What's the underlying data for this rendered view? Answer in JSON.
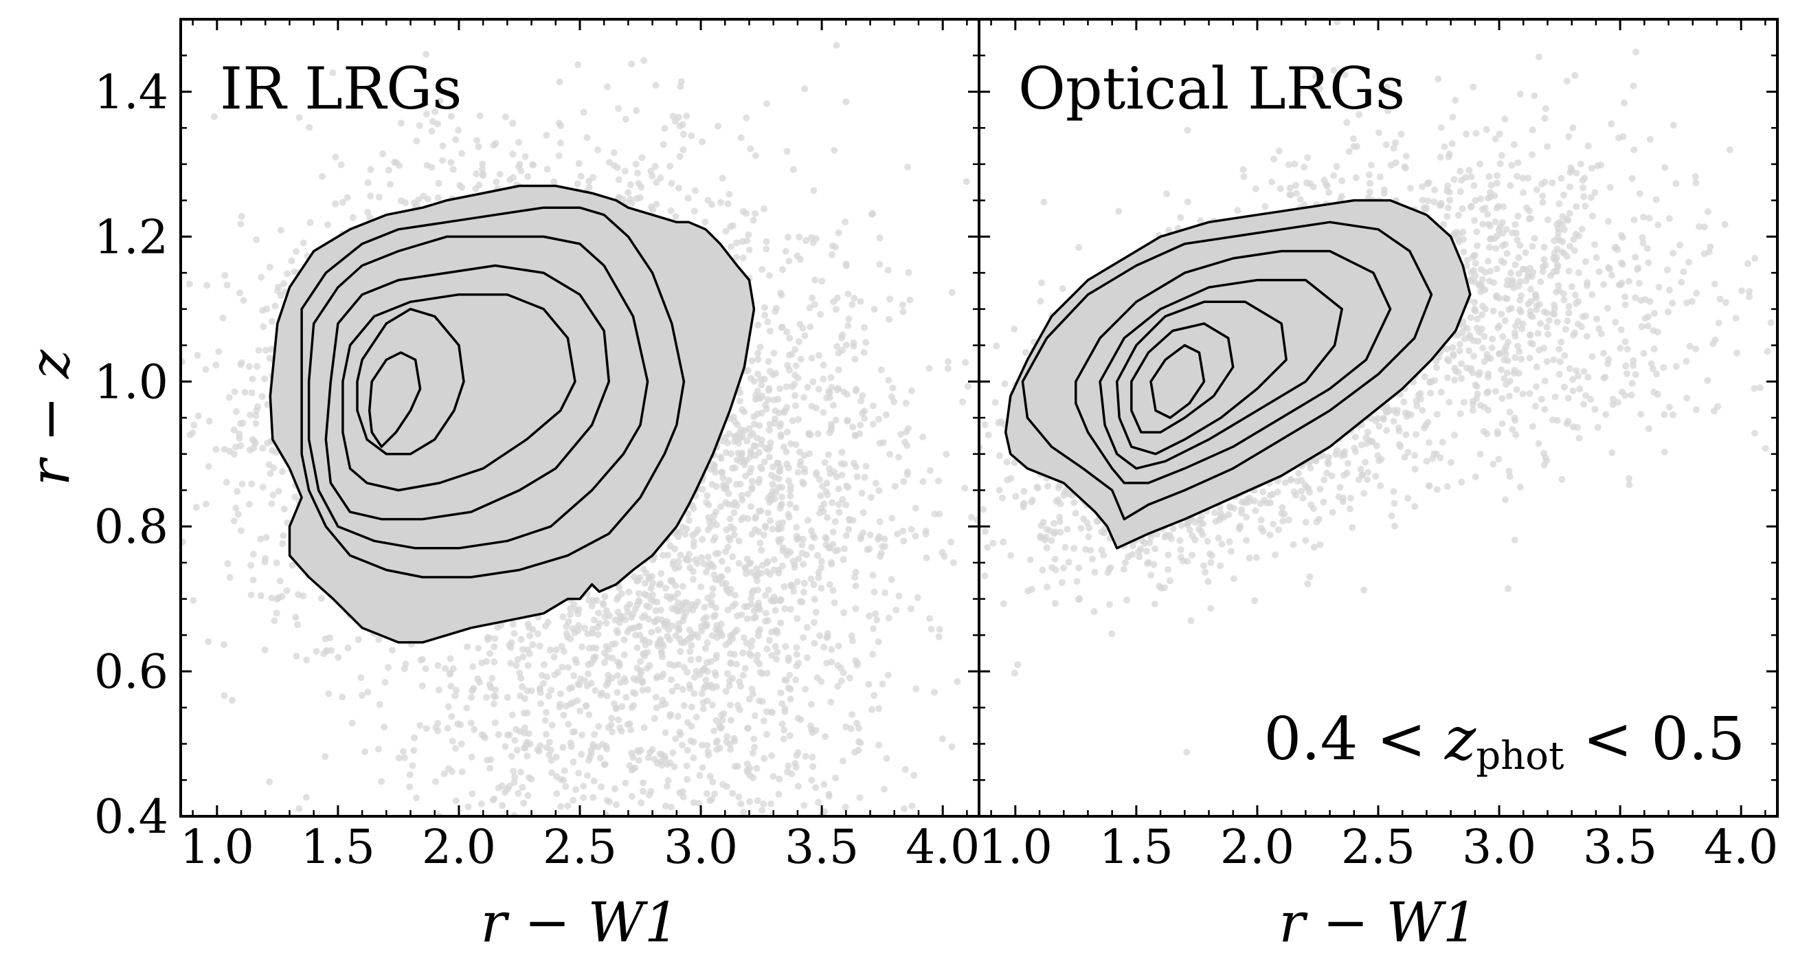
{
  "chart_data": [
    {
      "type": "scatter",
      "title": "IR LRGs",
      "annotation": "",
      "xlabel": "r − W1",
      "ylabel": "r − z",
      "xlim": [
        0.85,
        4.15
      ],
      "ylim": [
        0.4,
        1.5
      ],
      "xticks": [
        "1.0",
        "1.5",
        "2.0",
        "2.5",
        "3.0",
        "3.5",
        "4.0"
      ],
      "yticks": [
        "0.4",
        "0.6",
        "0.8",
        "1.0",
        "1.2",
        "1.4"
      ],
      "scatter_color": "#d6d6d6",
      "contour_fill": "#d3d3d3",
      "contour_color": "#000000",
      "contours": [
        {
          "level": 1,
          "x": [
            1.25,
            1.3,
            1.4,
            1.55,
            1.7,
            1.85,
            1.95,
            2.1,
            2.25,
            2.4,
            2.55,
            2.65,
            2.7,
            2.8,
            2.9,
            2.95,
            3.02,
            3.08,
            3.15,
            3.2,
            3.22,
            3.18,
            3.12,
            3.05,
            2.98,
            2.95,
            2.9,
            2.8,
            2.72,
            2.65,
            2.58,
            2.55,
            2.5,
            2.45,
            2.35,
            2.2,
            2.05,
            1.95,
            1.85,
            1.75,
            1.6,
            1.48,
            1.38,
            1.3,
            1.3,
            1.35,
            1.3,
            1.23,
            1.22,
            1.25
          ],
          "y": [
            1.08,
            1.13,
            1.18,
            1.21,
            1.23,
            1.24,
            1.25,
            1.26,
            1.27,
            1.27,
            1.26,
            1.25,
            1.24,
            1.23,
            1.22,
            1.22,
            1.21,
            1.19,
            1.16,
            1.14,
            1.1,
            1.02,
            0.96,
            0.9,
            0.85,
            0.83,
            0.8,
            0.76,
            0.74,
            0.72,
            0.71,
            0.72,
            0.7,
            0.7,
            0.68,
            0.67,
            0.66,
            0.65,
            0.64,
            0.64,
            0.66,
            0.7,
            0.73,
            0.76,
            0.8,
            0.84,
            0.88,
            0.92,
            0.98,
            1.08
          ]
        },
        {
          "level": 2,
          "x": [
            1.35,
            1.45,
            1.6,
            1.75,
            1.95,
            2.15,
            2.35,
            2.5,
            2.6,
            2.7,
            2.8,
            2.88,
            2.93,
            2.9,
            2.85,
            2.75,
            2.62,
            2.45,
            2.25,
            2.05,
            1.85,
            1.7,
            1.55,
            1.45,
            1.38,
            1.35,
            1.35,
            1.35
          ],
          "y": [
            1.1,
            1.15,
            1.19,
            1.21,
            1.22,
            1.23,
            1.24,
            1.24,
            1.23,
            1.2,
            1.15,
            1.08,
            1.0,
            0.94,
            0.9,
            0.84,
            0.79,
            0.76,
            0.74,
            0.73,
            0.73,
            0.74,
            0.76,
            0.8,
            0.85,
            0.9,
            1.0,
            1.1
          ]
        },
        {
          "level": 3,
          "x": [
            1.4,
            1.5,
            1.6,
            1.75,
            1.95,
            2.15,
            2.35,
            2.5,
            2.6,
            2.72,
            2.78,
            2.75,
            2.68,
            2.55,
            2.38,
            2.2,
            2.0,
            1.82,
            1.65,
            1.5,
            1.42,
            1.38,
            1.38,
            1.4
          ],
          "y": [
            1.08,
            1.13,
            1.16,
            1.18,
            1.2,
            1.2,
            1.2,
            1.19,
            1.16,
            1.09,
            1.0,
            0.94,
            0.9,
            0.85,
            0.8,
            0.78,
            0.77,
            0.77,
            0.78,
            0.8,
            0.85,
            0.92,
            1.0,
            1.08
          ]
        },
        {
          "level": 4,
          "x": [
            1.5,
            1.6,
            1.75,
            1.95,
            2.15,
            2.35,
            2.5,
            2.6,
            2.62,
            2.55,
            2.4,
            2.25,
            2.05,
            1.85,
            1.68,
            1.55,
            1.47,
            1.45,
            1.47,
            1.5
          ],
          "y": [
            1.08,
            1.12,
            1.14,
            1.15,
            1.16,
            1.15,
            1.12,
            1.07,
            1.0,
            0.94,
            0.88,
            0.85,
            0.82,
            0.81,
            0.81,
            0.82,
            0.86,
            0.92,
            1.0,
            1.08
          ]
        },
        {
          "level": 5,
          "x": [
            1.55,
            1.65,
            1.8,
            2.0,
            2.2,
            2.35,
            2.45,
            2.48,
            2.42,
            2.28,
            2.1,
            1.92,
            1.75,
            1.62,
            1.55,
            1.52,
            1.52,
            1.55
          ],
          "y": [
            1.05,
            1.09,
            1.11,
            1.12,
            1.12,
            1.1,
            1.06,
            1.0,
            0.96,
            0.92,
            0.88,
            0.86,
            0.85,
            0.86,
            0.88,
            0.93,
            1.0,
            1.05
          ]
        },
        {
          "level": 6,
          "x": [
            1.6,
            1.7,
            1.8,
            1.9,
            2.0,
            2.02,
            1.98,
            1.9,
            1.8,
            1.7,
            1.62,
            1.58,
            1.58,
            1.6
          ],
          "y": [
            1.03,
            1.08,
            1.1,
            1.09,
            1.05,
            1.0,
            0.96,
            0.92,
            0.9,
            0.9,
            0.92,
            0.96,
            1.0,
            1.03
          ]
        },
        {
          "level": 7,
          "x": [
            1.64,
            1.7,
            1.76,
            1.82,
            1.84,
            1.8,
            1.74,
            1.68,
            1.64,
            1.63,
            1.64
          ],
          "y": [
            1.0,
            1.03,
            1.04,
            1.03,
            0.99,
            0.96,
            0.93,
            0.91,
            0.93,
            0.96,
            1.0
          ]
        }
      ]
    },
    {
      "type": "scatter",
      "title": "Optical LRGs",
      "annotation_parts": [
        "0.4 < ",
        "z",
        "phot",
        " < 0.5"
      ],
      "xlabel": "r − W1",
      "ylabel": "",
      "xlim": [
        0.85,
        4.15
      ],
      "ylim": [
        0.4,
        1.5
      ],
      "xticks": [
        "1.0",
        "1.5",
        "2.0",
        "2.5",
        "3.0",
        "3.5",
        "4.0"
      ],
      "yticks": [],
      "scatter_color": "#d6d6d6",
      "contour_fill": "#d3d3d3",
      "contour_color": "#000000",
      "contours": [
        {
          "level": 1,
          "x": [
            0.98,
            1.05,
            1.15,
            1.3,
            1.45,
            1.6,
            1.8,
            2.0,
            2.2,
            2.4,
            2.55,
            2.7,
            2.8,
            2.85,
            2.88,
            2.82,
            2.72,
            2.6,
            2.45,
            2.3,
            2.1,
            1.9,
            1.7,
            1.55,
            1.42,
            1.38,
            1.33,
            1.2,
            1.05,
            0.98,
            0.96,
            0.98
          ],
          "y": [
            0.98,
            1.03,
            1.09,
            1.14,
            1.17,
            1.2,
            1.22,
            1.23,
            1.24,
            1.25,
            1.25,
            1.23,
            1.2,
            1.16,
            1.12,
            1.07,
            1.03,
            0.99,
            0.95,
            0.91,
            0.87,
            0.84,
            0.81,
            0.79,
            0.77,
            0.8,
            0.82,
            0.86,
            0.88,
            0.9,
            0.93,
            0.98
          ]
        },
        {
          "level": 2,
          "x": [
            1.03,
            1.13,
            1.3,
            1.5,
            1.7,
            1.9,
            2.1,
            2.3,
            2.5,
            2.63,
            2.72,
            2.65,
            2.5,
            2.3,
            2.1,
            1.9,
            1.7,
            1.55,
            1.45,
            1.4,
            1.28,
            1.15,
            1.05,
            1.03
          ],
          "y": [
            1.0,
            1.06,
            1.12,
            1.16,
            1.19,
            1.2,
            1.21,
            1.22,
            1.21,
            1.18,
            1.12,
            1.06,
            1.01,
            0.96,
            0.92,
            0.88,
            0.85,
            0.83,
            0.81,
            0.85,
            0.88,
            0.91,
            0.95,
            1.0
          ]
        },
        {
          "level": 3,
          "x": [
            1.25,
            1.35,
            1.5,
            1.7,
            1.9,
            2.1,
            2.3,
            2.48,
            2.55,
            2.45,
            2.3,
            2.1,
            1.9,
            1.7,
            1.55,
            1.45,
            1.4,
            1.3,
            1.25,
            1.25
          ],
          "y": [
            1.0,
            1.06,
            1.11,
            1.15,
            1.17,
            1.18,
            1.18,
            1.15,
            1.1,
            1.03,
            0.99,
            0.95,
            0.91,
            0.88,
            0.86,
            0.86,
            0.88,
            0.93,
            0.97,
            1.0
          ]
        },
        {
          "level": 4,
          "x": [
            1.35,
            1.45,
            1.6,
            1.8,
            2.0,
            2.2,
            2.35,
            2.32,
            2.2,
            2.0,
            1.8,
            1.62,
            1.5,
            1.42,
            1.37,
            1.35
          ],
          "y": [
            1.0,
            1.06,
            1.1,
            1.13,
            1.14,
            1.14,
            1.1,
            1.05,
            1.0,
            0.96,
            0.92,
            0.89,
            0.88,
            0.9,
            0.94,
            1.0
          ]
        },
        {
          "level": 5,
          "x": [
            1.42,
            1.5,
            1.62,
            1.78,
            1.95,
            2.1,
            2.12,
            2.0,
            1.85,
            1.7,
            1.58,
            1.48,
            1.43,
            1.42
          ],
          "y": [
            1.0,
            1.05,
            1.09,
            1.11,
            1.11,
            1.08,
            1.03,
            0.99,
            0.95,
            0.92,
            0.9,
            0.91,
            0.95,
            1.0
          ]
        },
        {
          "level": 6,
          "x": [
            1.48,
            1.55,
            1.65,
            1.78,
            1.88,
            1.9,
            1.82,
            1.7,
            1.6,
            1.52,
            1.48,
            1.48
          ],
          "y": [
            1.0,
            1.04,
            1.07,
            1.08,
            1.06,
            1.02,
            0.98,
            0.95,
            0.93,
            0.93,
            0.96,
            1.0
          ]
        },
        {
          "level": 7,
          "x": [
            1.56,
            1.62,
            1.7,
            1.76,
            1.78,
            1.72,
            1.64,
            1.58,
            1.56
          ],
          "y": [
            1.0,
            1.03,
            1.05,
            1.04,
            1.0,
            0.97,
            0.95,
            0.96,
            1.0
          ]
        }
      ]
    }
  ]
}
